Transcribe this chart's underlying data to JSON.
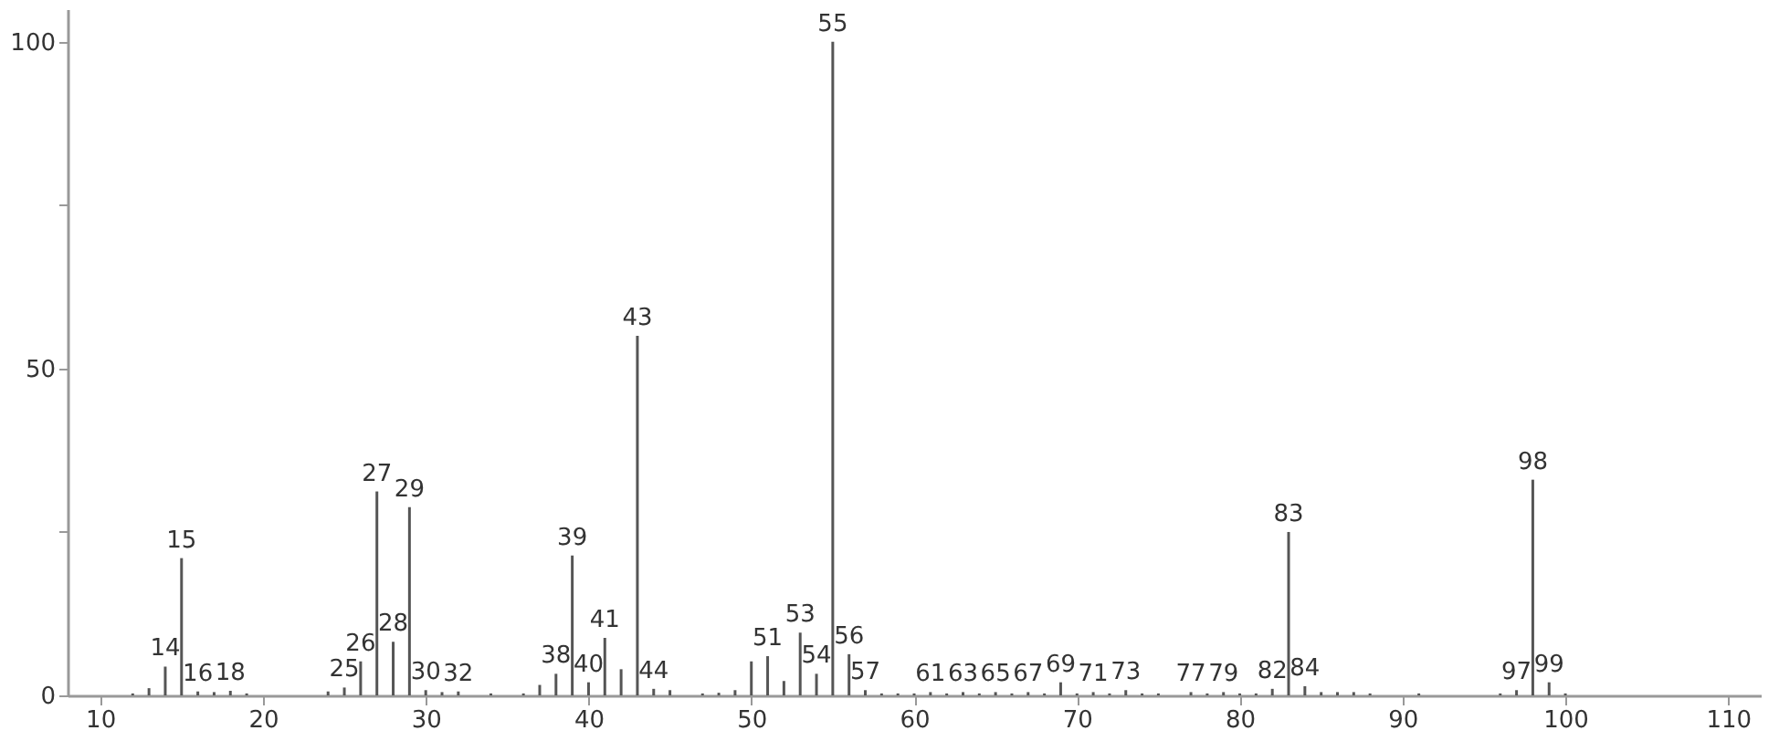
{
  "chart_data": {
    "type": "bar",
    "xlim": [
      8,
      112
    ],
    "ylim": [
      0,
      105
    ],
    "xticks": [
      10,
      20,
      30,
      40,
      50,
      60,
      70,
      80,
      90,
      100,
      110
    ],
    "yticks": [
      0,
      {
        "value": 25,
        "label": null
      },
      50,
      {
        "value": 75,
        "label": null
      },
      100
    ],
    "grid": false,
    "x": [
      12,
      13,
      14,
      15,
      16,
      17,
      18,
      19,
      24,
      25,
      26,
      27,
      28,
      29,
      30,
      31,
      32,
      34,
      36,
      37,
      38,
      39,
      40,
      41,
      42,
      43,
      44,
      45,
      47,
      48,
      49,
      50,
      51,
      52,
      53,
      54,
      55,
      56,
      57,
      58,
      59,
      60,
      61,
      62,
      63,
      64,
      65,
      66,
      67,
      68,
      69,
      70,
      71,
      72,
      73,
      74,
      75,
      77,
      78,
      79,
      80,
      81,
      82,
      83,
      84,
      85,
      86,
      87,
      88,
      91,
      96,
      97,
      98,
      99,
      100
    ],
    "series": [
      {
        "color": "#555555",
        "values": [
          0.3,
          1.1,
          4.4,
          21,
          0.6,
          0.5,
          0.7,
          0.3,
          0.6,
          1.2,
          5.2,
          31.2,
          8.2,
          28.8,
          0.8,
          0.5,
          0.6,
          0.3,
          0.3,
          1.6,
          3.3,
          21.4,
          2,
          8.8,
          4,
          55,
          1,
          0.8,
          0.3,
          0.4,
          0.8,
          5.2,
          6,
          2.2,
          9.6,
          3.3,
          100,
          6.3,
          0.8,
          0.3,
          0.3,
          0.3,
          0.5,
          0.3,
          0.5,
          0.3,
          0.5,
          0.3,
          0.5,
          0.3,
          2,
          0.3,
          0.5,
          0.3,
          0.8,
          0.3,
          0.3,
          0.5,
          0.3,
          0.5,
          0.3,
          0.3,
          1,
          25,
          1.4,
          0.5,
          0.5,
          0.5,
          0.3,
          0.3,
          0.3,
          0.8,
          33,
          2,
          0.3
        ]
      }
    ],
    "annotations": [
      {
        "text": "14",
        "x": 14,
        "y": 4.4
      },
      {
        "text": "15",
        "x": 15,
        "y": 21
      },
      {
        "text": "16",
        "x": 16,
        "y": 0.6
      },
      {
        "text": "18",
        "x": 18,
        "y": 0.7
      },
      {
        "text": "25",
        "x": 25,
        "y": 1.2
      },
      {
        "text": "26",
        "x": 26,
        "y": 5.2
      },
      {
        "text": "27",
        "x": 27,
        "y": 31.2
      },
      {
        "text": "28",
        "x": 28,
        "y": 8.2
      },
      {
        "text": "29",
        "x": 29,
        "y": 28.8
      },
      {
        "text": "30",
        "x": 30,
        "y": 0.8
      },
      {
        "text": "32",
        "x": 32,
        "y": 0.6
      },
      {
        "text": "38",
        "x": 38,
        "y": 3.3
      },
      {
        "text": "39",
        "x": 39,
        "y": 21.4
      },
      {
        "text": "40",
        "x": 40,
        "y": 2
      },
      {
        "text": "41",
        "x": 41,
        "y": 8.8
      },
      {
        "text": "43",
        "x": 43,
        "y": 55
      },
      {
        "text": "44",
        "x": 44,
        "y": 1
      },
      {
        "text": "51",
        "x": 51,
        "y": 6
      },
      {
        "text": "53",
        "x": 53,
        "y": 9.6
      },
      {
        "text": "54",
        "x": 54,
        "y": 3.3
      },
      {
        "text": "55",
        "x": 55,
        "y": 100
      },
      {
        "text": "56",
        "x": 56,
        "y": 6.3
      },
      {
        "text": "57",
        "x": 57,
        "y": 0.8
      },
      {
        "text": "61",
        "x": 61,
        "y": 0.5
      },
      {
        "text": "63",
        "x": 63,
        "y": 0.5
      },
      {
        "text": "65",
        "x": 65,
        "y": 0.5
      },
      {
        "text": "67",
        "x": 67,
        "y": 0.5
      },
      {
        "text": "69",
        "x": 69,
        "y": 2
      },
      {
        "text": "71",
        "x": 71,
        "y": 0.5
      },
      {
        "text": "73",
        "x": 73,
        "y": 0.8
      },
      {
        "text": "77",
        "x": 77,
        "y": 0.5
      },
      {
        "text": "79",
        "x": 79,
        "y": 0.5
      },
      {
        "text": "82",
        "x": 82,
        "y": 1
      },
      {
        "text": "83",
        "x": 83,
        "y": 25
      },
      {
        "text": "84",
        "x": 84,
        "y": 1.4
      },
      {
        "text": "97",
        "x": 97,
        "y": 0.8
      },
      {
        "text": "98",
        "x": 98,
        "y": 33
      },
      {
        "text": "99",
        "x": 99,
        "y": 2
      }
    ]
  }
}
